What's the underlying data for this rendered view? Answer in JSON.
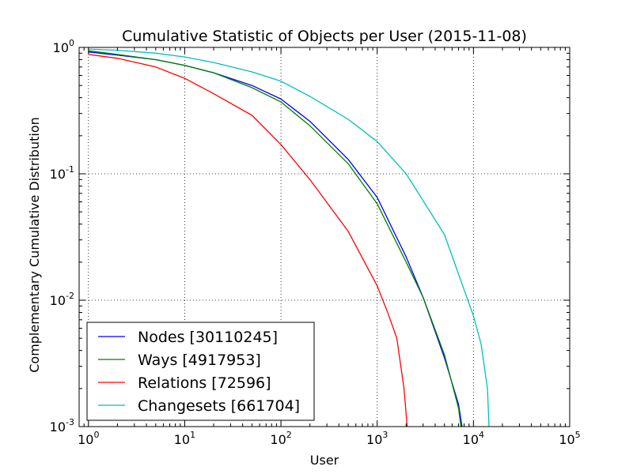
{
  "chart_data": {
    "type": "line",
    "title": "Cumulative Statistic of Objects per User (2015-11-08)",
    "xlabel": "User",
    "ylabel": "Complementary Cumulative Distribution",
    "xscale": "log",
    "yscale": "log",
    "xlim": [
      0.8,
      100000
    ],
    "ylim": [
      0.001,
      1
    ],
    "grid": true,
    "legend_position": "lower-left",
    "x_ticks": [
      {
        "base": "10",
        "exp": "0",
        "value": 1
      },
      {
        "base": "10",
        "exp": "1",
        "value": 10
      },
      {
        "base": "10",
        "exp": "2",
        "value": 100
      },
      {
        "base": "10",
        "exp": "3",
        "value": 1000
      },
      {
        "base": "10",
        "exp": "4",
        "value": 10000
      },
      {
        "base": "10",
        "exp": "5",
        "value": 100000
      }
    ],
    "y_ticks": [
      {
        "base": "10",
        "exp": "0",
        "value": 1
      },
      {
        "base": "10",
        "exp": "-1",
        "value": 0.1
      },
      {
        "base": "10",
        "exp": "-2",
        "value": 0.01
      },
      {
        "base": "10",
        "exp": "-3",
        "value": 0.001
      }
    ],
    "series": [
      {
        "name": "Nodes [30110245]",
        "color": "#0000ff",
        "x": [
          1,
          2,
          5,
          10,
          20,
          50,
          100,
          200,
          500,
          1000,
          2000,
          3000,
          5000,
          7000,
          7600
        ],
        "y": [
          0.92,
          0.87,
          0.8,
          0.72,
          0.63,
          0.5,
          0.39,
          0.26,
          0.13,
          0.065,
          0.022,
          0.0105,
          0.0035,
          0.0015,
          0.001
        ]
      },
      {
        "name": "Ways [4917953]",
        "color": "#008000",
        "x": [
          1,
          2,
          5,
          10,
          20,
          50,
          100,
          200,
          500,
          1000,
          2000,
          3000,
          5000,
          7000,
          7400
        ],
        "y": [
          0.94,
          0.88,
          0.8,
          0.72,
          0.63,
          0.48,
          0.37,
          0.24,
          0.12,
          0.058,
          0.02,
          0.0105,
          0.0037,
          0.0014,
          0.001
        ]
      },
      {
        "name": "Relations [72596]",
        "color": "#ff0000",
        "x": [
          1,
          2,
          5,
          10,
          20,
          50,
          100,
          200,
          500,
          1000,
          1300,
          1600,
          1900,
          2050
        ],
        "y": [
          0.88,
          0.82,
          0.7,
          0.57,
          0.43,
          0.29,
          0.17,
          0.09,
          0.035,
          0.013,
          0.0078,
          0.005,
          0.002,
          0.001
        ]
      },
      {
        "name": "Changesets [661704]",
        "color": "#00bfbf",
        "x": [
          1,
          2,
          5,
          10,
          20,
          50,
          100,
          200,
          500,
          1000,
          2000,
          5000,
          10000,
          12000,
          14000,
          14500
        ],
        "y": [
          0.97,
          0.95,
          0.9,
          0.84,
          0.76,
          0.64,
          0.54,
          0.41,
          0.27,
          0.18,
          0.1,
          0.033,
          0.0075,
          0.0045,
          0.002,
          0.001
        ]
      }
    ]
  }
}
